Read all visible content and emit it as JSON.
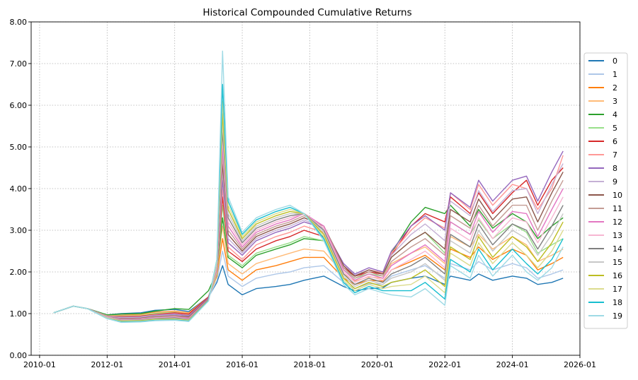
{
  "chart_data": {
    "type": "line",
    "title": "Historical Compounded Cumulative Returns",
    "xlabel": "",
    "ylabel": "",
    "x_range": [
      "2009-10-01",
      "2026-01-01"
    ],
    "ylim": [
      0.0,
      8.0
    ],
    "grid": true,
    "legend_position": "right",
    "x_ticks": [
      "2010-01",
      "2012-01",
      "2014-01",
      "2016-01",
      "2018-01",
      "2020-01",
      "2022-01",
      "2024-01",
      "2026-01"
    ],
    "y_ticks": [
      "0.00",
      "1.00",
      "2.00",
      "3.00",
      "4.00",
      "5.00",
      "6.00",
      "7.00",
      "8.00"
    ],
    "x": [
      "2010-06",
      "2011-01",
      "2011-06",
      "2012-01",
      "2012-06",
      "2013-01",
      "2013-06",
      "2014-01",
      "2014-06",
      "2015-01",
      "2015-04",
      "2015-06",
      "2015-08",
      "2016-01",
      "2016-06",
      "2017-01",
      "2017-06",
      "2017-11",
      "2018-06",
      "2019-01",
      "2019-05",
      "2019-10",
      "2020-03",
      "2020-06",
      "2021-01",
      "2021-06",
      "2022-01",
      "2022-03",
      "2022-10",
      "2023-01",
      "2023-06",
      "2024-01",
      "2024-06",
      "2024-10",
      "2025-03",
      "2025-07"
    ],
    "series": [
      {
        "name": "0",
        "color": "#1f77b4",
        "values": [
          1.02,
          1.18,
          1.12,
          0.97,
          1.0,
          1.02,
          1.08,
          1.1,
          1.05,
          1.4,
          1.75,
          2.15,
          1.7,
          1.45,
          1.6,
          1.65,
          1.7,
          1.8,
          1.9,
          1.65,
          1.55,
          1.6,
          1.62,
          1.75,
          1.85,
          1.9,
          1.7,
          1.9,
          1.8,
          1.95,
          1.8,
          1.9,
          1.85,
          1.7,
          1.75,
          1.85
        ]
      },
      {
        "name": "1",
        "color": "#aec7e8",
        "values": [
          1.02,
          1.18,
          1.12,
          0.96,
          0.98,
          1.0,
          1.05,
          1.05,
          1.0,
          1.38,
          1.8,
          2.5,
          1.9,
          1.65,
          1.85,
          1.95,
          2.0,
          2.1,
          2.15,
          1.75,
          1.6,
          1.72,
          1.7,
          1.9,
          2.05,
          2.15,
          1.85,
          2.2,
          2.05,
          2.25,
          2.05,
          2.2,
          2.1,
          1.85,
          1.95,
          2.05
        ]
      },
      {
        "name": "2",
        "color": "#ff7f0e",
        "values": [
          1.02,
          1.18,
          1.12,
          0.95,
          0.96,
          0.98,
          1.03,
          1.06,
          1.02,
          1.4,
          1.9,
          2.8,
          2.05,
          1.8,
          2.05,
          2.15,
          2.25,
          2.35,
          2.35,
          1.85,
          1.7,
          1.8,
          1.78,
          2.05,
          2.25,
          2.4,
          2.05,
          2.55,
          2.35,
          2.6,
          2.3,
          2.55,
          2.4,
          2.05,
          2.2,
          2.35
        ]
      },
      {
        "name": "3",
        "color": "#ffbb78",
        "values": [
          1.02,
          1.18,
          1.12,
          0.95,
          0.95,
          0.97,
          1.02,
          1.05,
          1.01,
          1.4,
          1.95,
          3.1,
          2.2,
          1.95,
          2.2,
          2.35,
          2.45,
          2.55,
          2.5,
          1.95,
          1.78,
          1.88,
          1.85,
          2.2,
          2.45,
          2.6,
          2.2,
          2.85,
          2.6,
          2.9,
          2.55,
          2.85,
          2.65,
          2.25,
          2.4,
          2.55
        ]
      },
      {
        "name": "4",
        "color": "#2ca02c",
        "values": [
          1.02,
          1.18,
          1.12,
          0.97,
          0.99,
          1.0,
          1.06,
          1.12,
          1.1,
          1.55,
          2.0,
          3.3,
          2.35,
          2.1,
          2.4,
          2.55,
          2.65,
          2.8,
          2.75,
          2.1,
          1.9,
          2.0,
          1.95,
          2.45,
          3.2,
          3.55,
          3.4,
          3.6,
          3.1,
          3.5,
          3.05,
          3.4,
          3.2,
          2.8,
          3.1,
          3.3
        ]
      },
      {
        "name": "5",
        "color": "#98df8a",
        "values": [
          1.02,
          1.18,
          1.12,
          0.95,
          0.94,
          0.95,
          1.0,
          1.03,
          0.98,
          1.38,
          1.95,
          3.6,
          2.4,
          2.15,
          2.45,
          2.6,
          2.7,
          2.85,
          2.75,
          2.05,
          1.85,
          1.95,
          1.9,
          2.35,
          2.75,
          2.95,
          2.45,
          3.2,
          2.9,
          3.25,
          2.8,
          3.15,
          2.95,
          2.45,
          2.65,
          2.8
        ]
      },
      {
        "name": "6",
        "color": "#d62728",
        "values": [
          1.02,
          1.18,
          1.12,
          0.94,
          0.93,
          0.94,
          0.98,
          1.02,
          0.99,
          1.4,
          2.0,
          3.8,
          2.5,
          2.25,
          2.55,
          2.75,
          2.85,
          3.0,
          2.85,
          2.1,
          1.9,
          2.0,
          1.95,
          2.4,
          3.1,
          3.4,
          3.2,
          3.8,
          3.4,
          3.9,
          3.4,
          3.9,
          4.2,
          3.6,
          4.2,
          4.5
        ]
      },
      {
        "name": "7",
        "color": "#ff9896",
        "values": [
          1.02,
          1.18,
          1.12,
          0.94,
          0.92,
          0.93,
          0.97,
          1.0,
          0.96,
          1.38,
          2.0,
          4.0,
          2.6,
          2.3,
          2.65,
          2.85,
          2.95,
          3.1,
          2.95,
          2.15,
          1.92,
          2.05,
          1.98,
          2.45,
          3.0,
          3.3,
          3.05,
          3.9,
          3.5,
          4.1,
          3.6,
          4.1,
          4.0,
          3.5,
          4.0,
          4.8
        ]
      },
      {
        "name": "8",
        "color": "#9467bd",
        "values": [
          1.02,
          1.18,
          1.12,
          0.93,
          0.91,
          0.92,
          0.96,
          0.99,
          0.95,
          1.38,
          2.05,
          4.2,
          2.7,
          2.4,
          2.75,
          2.95,
          3.05,
          3.2,
          3.05,
          2.2,
          1.95,
          2.1,
          2.0,
          2.5,
          3.1,
          3.35,
          3.0,
          3.9,
          3.55,
          4.2,
          3.7,
          4.2,
          4.3,
          3.7,
          4.4,
          4.9
        ]
      },
      {
        "name": "9",
        "color": "#c5b0d5",
        "values": [
          1.02,
          1.18,
          1.12,
          0.93,
          0.9,
          0.91,
          0.95,
          0.97,
          0.93,
          1.36,
          2.05,
          4.4,
          2.8,
          2.45,
          2.8,
          3.0,
          3.1,
          3.25,
          3.05,
          2.15,
          1.92,
          2.05,
          1.95,
          2.4,
          2.9,
          3.15,
          2.75,
          3.7,
          3.35,
          3.95,
          3.45,
          3.95,
          4.0,
          3.4,
          4.1,
          4.6
        ]
      },
      {
        "name": "10",
        "color": "#8c564b",
        "values": [
          1.02,
          1.18,
          1.12,
          0.92,
          0.88,
          0.89,
          0.93,
          0.95,
          0.92,
          1.36,
          2.1,
          4.6,
          2.9,
          2.5,
          2.85,
          3.05,
          3.15,
          3.3,
          3.1,
          2.15,
          1.9,
          2.05,
          1.95,
          2.35,
          2.75,
          2.95,
          2.55,
          3.5,
          3.2,
          3.75,
          3.25,
          3.75,
          3.8,
          3.2,
          3.9,
          4.4
        ]
      },
      {
        "name": "11",
        "color": "#c49c94",
        "values": [
          1.02,
          1.18,
          1.12,
          0.92,
          0.87,
          0.88,
          0.92,
          0.94,
          0.9,
          1.35,
          2.1,
          4.8,
          3.0,
          2.55,
          2.9,
          3.1,
          3.2,
          3.35,
          3.1,
          2.1,
          1.85,
          2.0,
          1.9,
          2.25,
          2.6,
          2.8,
          2.4,
          3.35,
          3.05,
          3.6,
          3.1,
          3.6,
          3.6,
          3.0,
          3.7,
          4.2
        ]
      },
      {
        "name": "12",
        "color": "#e377c2",
        "values": [
          1.02,
          1.18,
          1.12,
          0.91,
          0.86,
          0.87,
          0.9,
          0.92,
          0.89,
          1.34,
          2.15,
          5.0,
          3.1,
          2.6,
          2.95,
          3.15,
          3.25,
          3.4,
          3.1,
          2.05,
          1.8,
          1.95,
          1.85,
          2.15,
          2.45,
          2.65,
          2.25,
          3.2,
          2.9,
          3.45,
          2.95,
          3.45,
          3.4,
          2.85,
          3.5,
          4.0
        ]
      },
      {
        "name": "13",
        "color": "#f7b6d2",
        "values": [
          1.02,
          1.18,
          1.12,
          0.91,
          0.85,
          0.86,
          0.89,
          0.91,
          0.87,
          1.33,
          2.15,
          5.2,
          3.2,
          2.65,
          3.0,
          3.2,
          3.3,
          3.4,
          3.05,
          2.0,
          1.75,
          1.9,
          1.8,
          2.05,
          2.3,
          2.5,
          2.1,
          3.05,
          2.75,
          3.3,
          2.8,
          3.3,
          3.2,
          2.7,
          3.3,
          3.8
        ]
      },
      {
        "name": "14",
        "color": "#7f7f7f",
        "values": [
          1.02,
          1.18,
          1.12,
          0.9,
          0.84,
          0.85,
          0.88,
          0.9,
          0.86,
          1.33,
          2.2,
          5.4,
          3.3,
          2.7,
          3.05,
          3.25,
          3.35,
          3.4,
          3.0,
          1.95,
          1.7,
          1.85,
          1.75,
          1.95,
          2.15,
          2.35,
          1.95,
          2.9,
          2.6,
          3.15,
          2.65,
          3.15,
          3.0,
          2.55,
          3.1,
          3.6
        ]
      },
      {
        "name": "15",
        "color": "#c7c7c7",
        "values": [
          1.02,
          1.18,
          1.12,
          0.9,
          0.83,
          0.84,
          0.87,
          0.88,
          0.85,
          1.32,
          2.2,
          5.6,
          3.4,
          2.75,
          3.1,
          3.3,
          3.4,
          3.4,
          2.95,
          1.9,
          1.65,
          1.8,
          1.7,
          1.85,
          2.0,
          2.2,
          1.8,
          2.75,
          2.45,
          3.0,
          2.5,
          3.0,
          2.8,
          2.4,
          2.9,
          3.4
        ]
      },
      {
        "name": "16",
        "color": "#bcbd22",
        "values": [
          1.02,
          1.18,
          1.12,
          0.89,
          0.82,
          0.83,
          0.86,
          0.87,
          0.84,
          1.32,
          2.25,
          5.8,
          3.5,
          2.8,
          3.15,
          3.35,
          3.45,
          3.4,
          2.9,
          1.85,
          1.6,
          1.75,
          1.65,
          1.75,
          1.85,
          2.05,
          1.65,
          2.6,
          2.3,
          2.85,
          2.35,
          2.85,
          2.6,
          2.25,
          2.7,
          3.2
        ]
      },
      {
        "name": "17",
        "color": "#dbdb8d",
        "values": [
          1.02,
          1.18,
          1.12,
          0.89,
          0.81,
          0.82,
          0.85,
          0.86,
          0.83,
          1.31,
          2.25,
          6.1,
          3.6,
          2.85,
          3.2,
          3.4,
          3.5,
          3.4,
          2.85,
          1.8,
          1.55,
          1.7,
          1.6,
          1.65,
          1.7,
          1.9,
          1.5,
          2.45,
          2.15,
          2.7,
          2.2,
          2.7,
          2.4,
          2.1,
          2.5,
          3.0
        ]
      },
      {
        "name": "18",
        "color": "#17becf",
        "values": [
          1.02,
          1.18,
          1.12,
          0.88,
          0.8,
          0.81,
          0.84,
          0.85,
          0.82,
          1.31,
          2.3,
          6.5,
          3.7,
          2.9,
          3.25,
          3.45,
          3.55,
          3.4,
          2.8,
          1.75,
          1.5,
          1.65,
          1.55,
          1.55,
          1.55,
          1.75,
          1.35,
          2.3,
          2.0,
          2.55,
          2.05,
          2.55,
          2.2,
          1.95,
          2.3,
          2.8
        ]
      },
      {
        "name": "19",
        "color": "#9edae5",
        "values": [
          1.02,
          1.18,
          1.12,
          0.88,
          0.79,
          0.8,
          0.83,
          0.84,
          0.81,
          1.3,
          2.3,
          7.3,
          3.8,
          2.95,
          3.3,
          3.5,
          3.6,
          3.4,
          2.75,
          1.7,
          1.45,
          1.6,
          1.5,
          1.45,
          1.4,
          1.6,
          1.2,
          2.15,
          1.85,
          2.4,
          1.9,
          2.4,
          2.0,
          1.8,
          2.1,
          2.6
        ]
      }
    ]
  }
}
